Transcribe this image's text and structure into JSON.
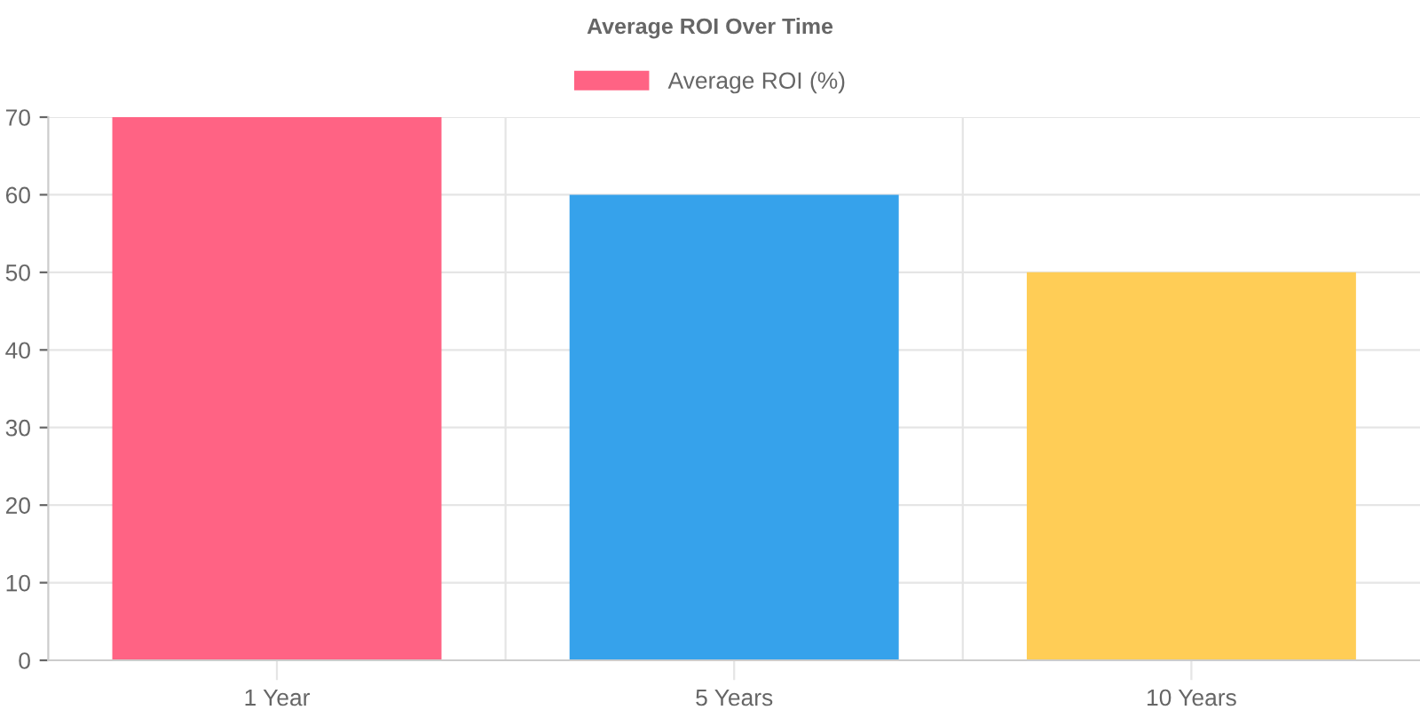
{
  "chart_data": {
    "type": "bar",
    "title": "Average ROI Over Time",
    "categories": [
      "1 Year",
      "5 Years",
      "10 Years"
    ],
    "series": [
      {
        "name": "Average ROI (%)",
        "color": "#ff6384",
        "colors": [
          "#ff6384",
          "#36a2eb",
          "#ffcd56"
        ],
        "values": [
          70,
          60,
          50
        ]
      }
    ],
    "ylim": [
      0,
      70
    ],
    "yticks": [
      0,
      10,
      20,
      30,
      40,
      50,
      60,
      70
    ],
    "grid": true,
    "legend": "top"
  }
}
